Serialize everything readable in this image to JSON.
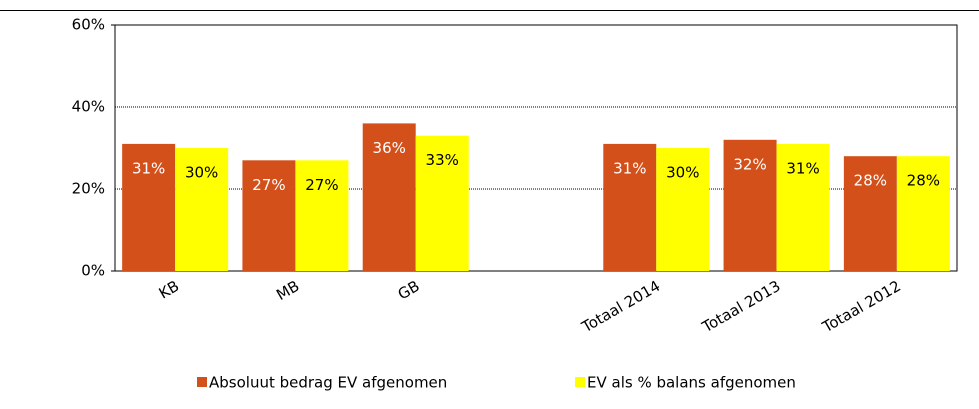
{
  "chart_data": {
    "type": "bar",
    "categories": [
      "KB",
      "MB",
      "GB",
      null,
      "Totaal 2014",
      "Totaal 2013",
      "Totaal 2012"
    ],
    "series": [
      {
        "name": "Absoluut bedrag EV afgenomen",
        "color": "#d4501b",
        "values": [
          31,
          27,
          36,
          null,
          31,
          32,
          28
        ],
        "value_labels": [
          "31%",
          "27%",
          "36%",
          null,
          "31%",
          "32%",
          "28%"
        ]
      },
      {
        "name": "EV als % balans afgenomen",
        "color": "#ffff00",
        "values": [
          30,
          27,
          33,
          null,
          30,
          31,
          28
        ],
        "value_labels": [
          "30%",
          "27%",
          "33%",
          null,
          "30%",
          "31%",
          "28%"
        ]
      }
    ],
    "ylim": [
      0,
      60
    ],
    "yticks": [
      {
        "value": 0,
        "label": "0%"
      },
      {
        "value": 20,
        "label": "20%"
      },
      {
        "value": 40,
        "label": "40%"
      },
      {
        "value": 60,
        "label": "60%"
      }
    ],
    "grid": true
  }
}
